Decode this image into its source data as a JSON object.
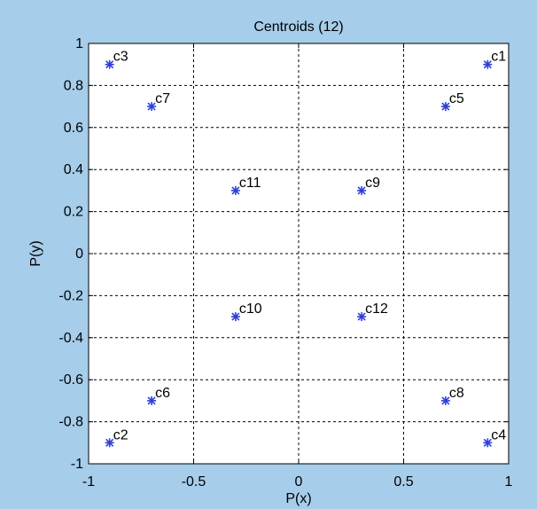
{
  "chart_data": {
    "type": "scatter",
    "title": "Centroids (12)",
    "xlabel": "P(x)",
    "ylabel": "P(y)",
    "xlim": [
      -1,
      1
    ],
    "ylim": [
      -1,
      1
    ],
    "xticks": [
      -1,
      -0.5,
      0,
      0.5,
      1
    ],
    "xtick_labels": [
      "-1",
      "-0.5",
      "0",
      "0.5",
      "1"
    ],
    "yticks": [
      1,
      0.8,
      0.6,
      0.4,
      0.2,
      0,
      -0.2,
      -0.4,
      -0.6,
      -0.8,
      -1
    ],
    "ytick_labels": [
      "1",
      "0.8",
      "0.6",
      "0.4",
      "0.2",
      "0",
      "-0.2",
      "-0.4",
      "-0.6",
      "-0.8",
      "-1"
    ],
    "grid": true,
    "marker": "asterisk",
    "marker_color": "#2f3fd6",
    "background_color": "#a6cdea",
    "points": [
      {
        "label": "c1",
        "x": 0.9,
        "y": 0.9
      },
      {
        "label": "c2",
        "x": -0.9,
        "y": -0.9
      },
      {
        "label": "c3",
        "x": -0.9,
        "y": 0.9
      },
      {
        "label": "c4",
        "x": 0.9,
        "y": -0.9
      },
      {
        "label": "c5",
        "x": 0.7,
        "y": 0.7
      },
      {
        "label": "c6",
        "x": -0.7,
        "y": -0.7
      },
      {
        "label": "c7",
        "x": -0.7,
        "y": 0.7
      },
      {
        "label": "c8",
        "x": 0.7,
        "y": -0.7
      },
      {
        "label": "c9",
        "x": 0.3,
        "y": 0.3
      },
      {
        "label": "c10",
        "x": -0.3,
        "y": -0.3
      },
      {
        "label": "c11",
        "x": -0.3,
        "y": 0.3
      },
      {
        "label": "c12",
        "x": 0.3,
        "y": -0.3
      }
    ]
  }
}
